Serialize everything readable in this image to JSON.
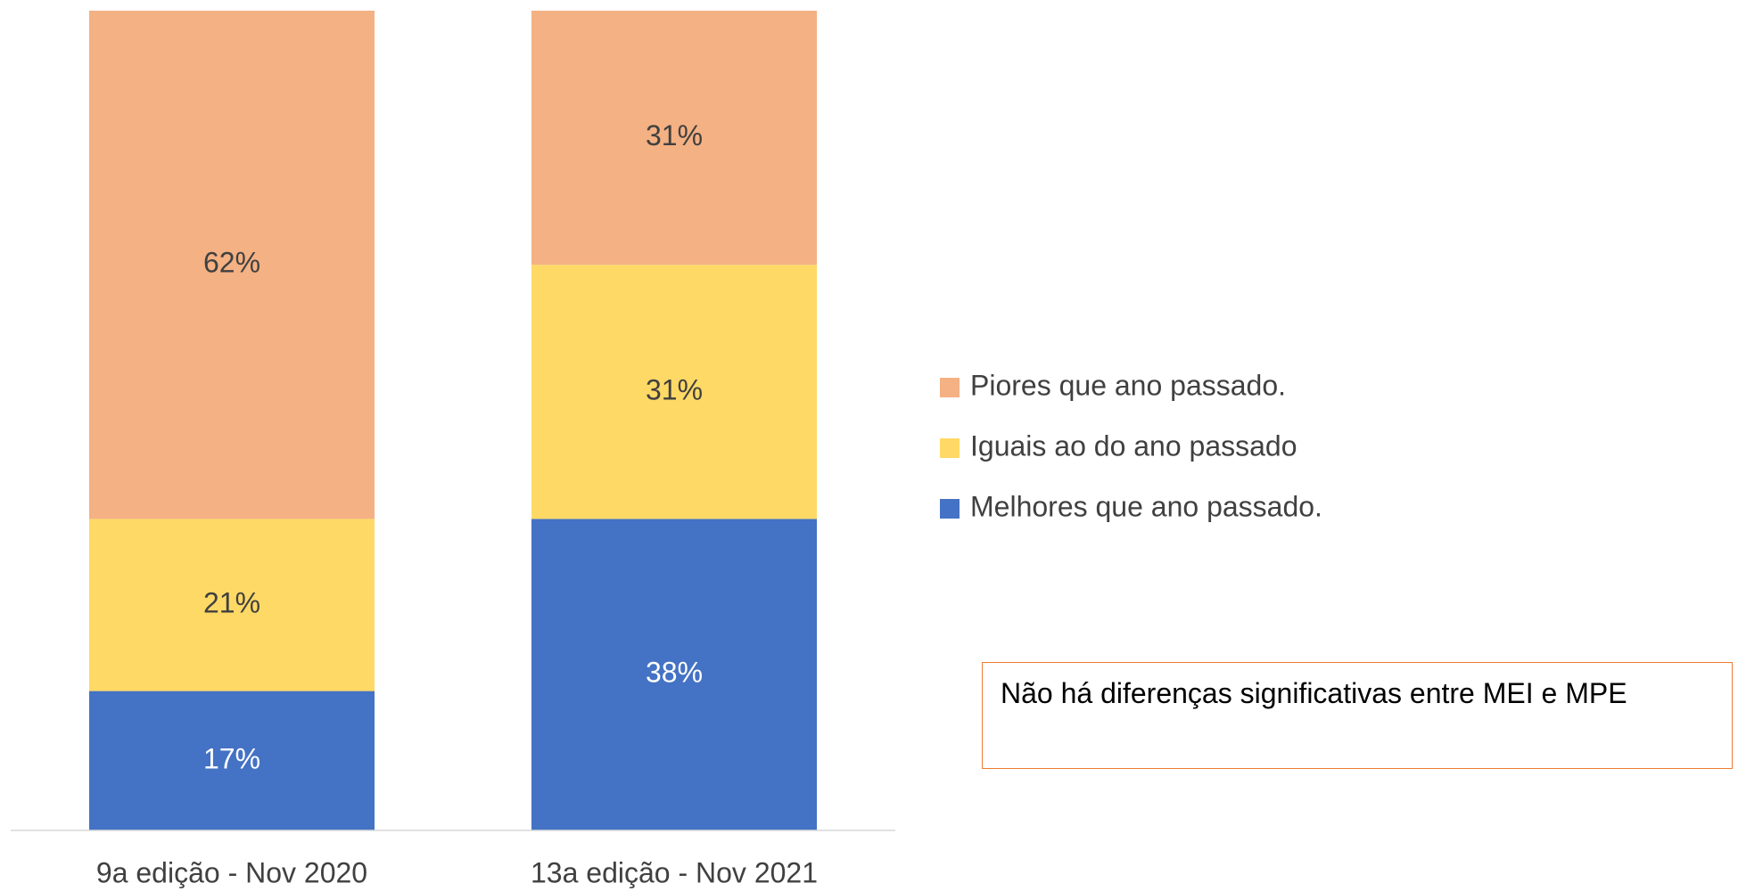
{
  "chart_data": {
    "type": "stacked_bar",
    "categories": [
      "9a edição - Nov 2020",
      "13a edição - Nov 2021"
    ],
    "series": [
      {
        "name": "Melhores que ano passado.",
        "color": "#4472c4",
        "values": [
          17,
          38
        ],
        "value_labels": [
          "17%",
          "38%"
        ]
      },
      {
        "name": "Iguais ao do ano passado",
        "color": "#ffd966",
        "values": [
          21,
          31
        ],
        "value_labels": [
          "21%",
          "31%"
        ]
      },
      {
        "name": "Piores que ano passado.",
        "color": "#f4b183",
        "values": [
          62,
          31
        ],
        "value_labels": [
          "62%",
          "31%"
        ]
      }
    ],
    "ylim": [
      0,
      100
    ],
    "legend": "right",
    "annotation": "Não há diferenças significativas entre MEI e MPE"
  }
}
